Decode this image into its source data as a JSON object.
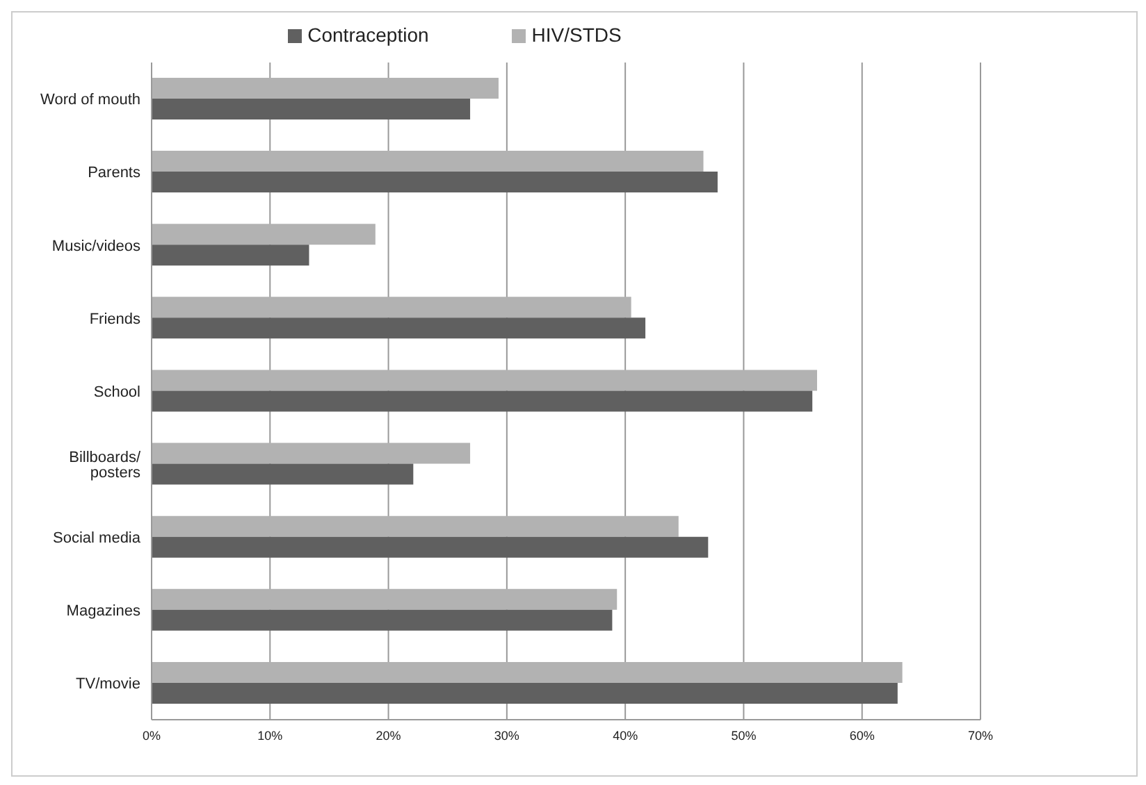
{
  "chart_data": {
    "type": "bar",
    "orientation": "horizontal",
    "categories": [
      "Word of mouth",
      "Parents",
      "Music/videos",
      "Friends",
      "School",
      "Billboards/ posters",
      "Social media",
      "Magazines",
      "TV/movie"
    ],
    "series": [
      {
        "name": "HIV/STDS",
        "color": "#b2b2b2",
        "values": [
          29.3,
          46.6,
          18.9,
          40.5,
          56.2,
          26.9,
          44.5,
          39.3,
          63.4
        ]
      },
      {
        "name": "Contraception",
        "color": "#606060",
        "values": [
          26.9,
          47.8,
          13.3,
          41.7,
          55.8,
          22.1,
          47.0,
          38.9,
          63.0
        ]
      }
    ],
    "xlim": [
      0,
      70
    ],
    "xticks": [
      {
        "value": 0,
        "label": "0%"
      },
      {
        "value": 10,
        "label": "10%"
      },
      {
        "value": 20,
        "label": "20%"
      },
      {
        "value": 30,
        "label": "30%"
      },
      {
        "value": 40,
        "label": "40%"
      },
      {
        "value": 50,
        "label": "50%"
      },
      {
        "value": 60,
        "label": "60%"
      },
      {
        "value": 70,
        "label": "70%"
      }
    ],
    "grid": "x",
    "legend": "top"
  }
}
